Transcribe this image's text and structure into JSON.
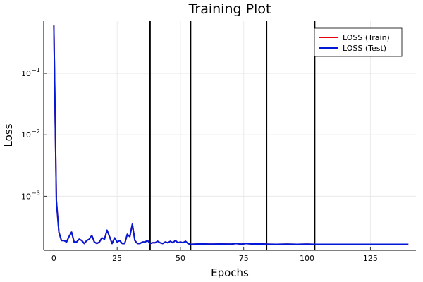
{
  "chart_data": {
    "type": "line",
    "title": "Training Plot",
    "xlabel": "Epochs",
    "ylabel": "Loss",
    "xlim": [
      -4,
      143
    ],
    "ylim_log10": [
      -3.88,
      -0.15
    ],
    "yscale": "log",
    "grid": true,
    "legend_position": "top-right",
    "x_ticks": [
      0,
      25,
      50,
      75,
      100,
      125
    ],
    "x_tick_labels": [
      "0",
      "25",
      "50",
      "75",
      "100",
      "125"
    ],
    "y_tick_values": [
      0.001,
      0.01,
      0.1
    ],
    "y_tick_bases": [
      "10",
      "10",
      "10"
    ],
    "y_tick_exponents": [
      "−3",
      "−2",
      "−1"
    ],
    "vlines": [
      38,
      54,
      84,
      103
    ],
    "series": [
      {
        "name": "LOSS (Train)",
        "color": "#e8000b",
        "x": [
          0,
          1,
          2,
          3,
          4,
          5,
          6,
          7,
          8,
          9,
          10,
          11,
          12,
          13,
          14,
          15,
          16,
          17,
          18,
          19,
          20,
          21,
          22,
          23,
          24,
          25,
          26,
          27,
          28,
          29,
          30,
          31,
          32,
          33,
          34,
          35,
          36,
          37,
          38,
          39,
          40,
          41,
          42,
          43,
          44,
          45,
          46,
          47,
          48,
          49,
          50,
          51,
          52,
          53,
          54,
          58,
          62,
          66,
          70,
          72,
          74,
          76,
          78,
          80,
          82,
          84,
          88,
          92,
          96,
          100,
          103,
          110,
          120,
          130,
          140
        ],
        "y": [
          0.6,
          0.00085,
          0.00026,
          0.00019,
          0.00019,
          0.00018,
          0.00022,
          0.00026,
          0.00018,
          0.00018,
          0.0002,
          0.00019,
          0.00017,
          0.00019,
          0.0002,
          0.00023,
          0.00018,
          0.00017,
          0.00018,
          0.00021,
          0.0002,
          0.00028,
          0.00022,
          0.00017,
          0.00021,
          0.00018,
          0.00019,
          0.00017,
          0.00017,
          0.00024,
          0.00022,
          0.00035,
          0.00019,
          0.00017,
          0.00017,
          0.00018,
          0.00018,
          0.00019,
          0.00017,
          0.000175,
          0.000175,
          0.000185,
          0.000175,
          0.00017,
          0.00018,
          0.000175,
          0.000185,
          0.000175,
          0.00019,
          0.000175,
          0.00018,
          0.000175,
          0.000185,
          0.00017,
          0.000165,
          0.000168,
          0.000166,
          0.000167,
          0.000166,
          0.00017,
          0.000166,
          0.00017,
          0.000167,
          0.000168,
          0.000167,
          0.000166,
          0.000165,
          0.000166,
          0.000165,
          0.000166,
          0.000165,
          0.000165,
          0.000165,
          0.000165,
          0.000165
        ]
      },
      {
        "name": "LOSS (Test)",
        "color": "#0019d8",
        "x": [
          0,
          1,
          2,
          3,
          4,
          5,
          6,
          7,
          8,
          9,
          10,
          11,
          12,
          13,
          14,
          15,
          16,
          17,
          18,
          19,
          20,
          21,
          22,
          23,
          24,
          25,
          26,
          27,
          28,
          29,
          30,
          31,
          32,
          33,
          34,
          35,
          36,
          37,
          38,
          39,
          40,
          41,
          42,
          43,
          44,
          45,
          46,
          47,
          48,
          49,
          50,
          51,
          52,
          53,
          54,
          58,
          62,
          66,
          70,
          72,
          74,
          76,
          78,
          80,
          82,
          84,
          88,
          92,
          96,
          100,
          103,
          110,
          120,
          130,
          140
        ],
        "y": [
          0.6,
          0.00085,
          0.00026,
          0.00019,
          0.00019,
          0.00018,
          0.00022,
          0.00026,
          0.00018,
          0.00018,
          0.0002,
          0.00019,
          0.00017,
          0.00019,
          0.0002,
          0.00023,
          0.00018,
          0.00017,
          0.00018,
          0.00021,
          0.0002,
          0.00028,
          0.00022,
          0.00017,
          0.00021,
          0.00018,
          0.00019,
          0.00017,
          0.00017,
          0.00024,
          0.00022,
          0.00035,
          0.00019,
          0.00017,
          0.00017,
          0.00018,
          0.00018,
          0.00019,
          0.00017,
          0.000175,
          0.000175,
          0.000185,
          0.000175,
          0.00017,
          0.00018,
          0.000175,
          0.000185,
          0.000175,
          0.00019,
          0.000175,
          0.00018,
          0.000175,
          0.000185,
          0.00017,
          0.000165,
          0.000168,
          0.000166,
          0.000167,
          0.000166,
          0.00017,
          0.000166,
          0.00017,
          0.000167,
          0.000168,
          0.000167,
          0.000166,
          0.000165,
          0.000166,
          0.000165,
          0.000166,
          0.000165,
          0.000165,
          0.000165,
          0.000165,
          0.000165
        ]
      }
    ]
  }
}
